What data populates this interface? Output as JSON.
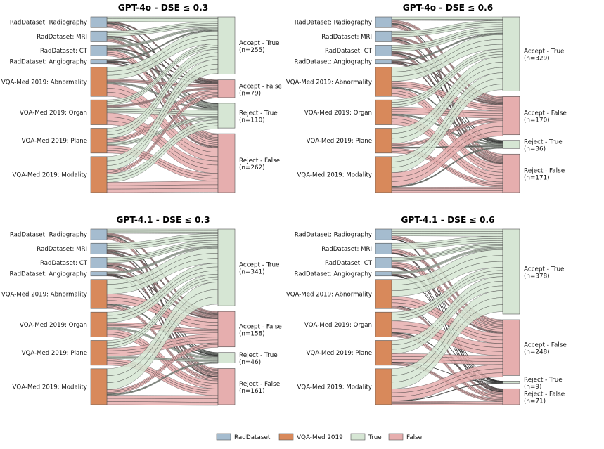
{
  "colors": {
    "radDataset": "#a5bccf",
    "vqaMed": "#d8895b",
    "trueFill": "#d6e6d4",
    "falseFill": "#e6aeae",
    "stroke": "#555555"
  },
  "legend": [
    {
      "label": "RadDataset",
      "color_key": "radDataset"
    },
    {
      "label": "VQA-Med 2019",
      "color_key": "vqaMed"
    },
    {
      "label": "True",
      "color_key": "trueFill"
    },
    {
      "label": "False",
      "color_key": "falseFill"
    }
  ],
  "chart_data": [
    {
      "type": "sankey",
      "title": "GPT-4o - DSE ≤ 0.3",
      "sources": [
        {
          "label": "RadDataset: Radiography",
          "group": "radDataset",
          "n": 50
        },
        {
          "label": "RadDataset: MRI",
          "group": "radDataset",
          "n": 50
        },
        {
          "label": "RadDataset: CT",
          "group": "radDataset",
          "n": 50
        },
        {
          "label": "RadDataset: Angiography",
          "group": "radDataset",
          "n": 20
        },
        {
          "label": "VQA-Med 2019: Abnormality",
          "group": "vqaMed",
          "n": 136
        },
        {
          "label": "VQA-Med 2019: Organ",
          "group": "vqaMed",
          "n": 116
        },
        {
          "label": "VQA-Med 2019: Plane",
          "group": "vqaMed",
          "n": 116
        },
        {
          "label": "VQA-Med 2019: Modality",
          "group": "vqaMed",
          "n": 168
        }
      ],
      "targets": [
        {
          "name": "Accept - True",
          "count_text": "(n=255)",
          "n": 255,
          "kind": "true"
        },
        {
          "name": "Accept - False",
          "count_text": "(n=79)",
          "n": 79,
          "kind": "false"
        },
        {
          "name": "Reject - True",
          "count_text": "(n=110)",
          "n": 110,
          "kind": "true"
        },
        {
          "name": "Reject - False",
          "count_text": "(n=262)",
          "n": 262,
          "kind": "false"
        }
      ]
    },
    {
      "type": "sankey",
      "title": "GPT-4o - DSE ≤ 0.6",
      "sources": [
        {
          "label": "RadDataset: Radiography",
          "group": "radDataset",
          "n": 50
        },
        {
          "label": "RadDataset: MRI",
          "group": "radDataset",
          "n": 50
        },
        {
          "label": "RadDataset: CT",
          "group": "radDataset",
          "n": 50
        },
        {
          "label": "RadDataset: Angiography",
          "group": "radDataset",
          "n": 20
        },
        {
          "label": "VQA-Med 2019: Abnormality",
          "group": "vqaMed",
          "n": 136
        },
        {
          "label": "VQA-Med 2019: Organ",
          "group": "vqaMed",
          "n": 116
        },
        {
          "label": "VQA-Med 2019: Plane",
          "group": "vqaMed",
          "n": 116
        },
        {
          "label": "VQA-Med 2019: Modality",
          "group": "vqaMed",
          "n": 168
        }
      ],
      "targets": [
        {
          "name": "Accept - True",
          "count_text": "(n=329)",
          "n": 329,
          "kind": "true"
        },
        {
          "name": "Accept - False",
          "count_text": "(n=170)",
          "n": 170,
          "kind": "false"
        },
        {
          "name": "Reject - True",
          "count_text": "(n=36)",
          "n": 36,
          "kind": "true"
        },
        {
          "name": "Reject - False",
          "count_text": "(n=171)",
          "n": 171,
          "kind": "false"
        }
      ]
    },
    {
      "type": "sankey",
      "title": "GPT-4.1 - DSE ≤ 0.3",
      "sources": [
        {
          "label": "RadDataset: Radiography",
          "group": "radDataset",
          "n": 50
        },
        {
          "label": "RadDataset: MRI",
          "group": "radDataset",
          "n": 50
        },
        {
          "label": "RadDataset: CT",
          "group": "radDataset",
          "n": 50
        },
        {
          "label": "RadDataset: Angiography",
          "group": "radDataset",
          "n": 20
        },
        {
          "label": "VQA-Med 2019: Abnormality",
          "group": "vqaMed",
          "n": 136
        },
        {
          "label": "VQA-Med 2019: Organ",
          "group": "vqaMed",
          "n": 116
        },
        {
          "label": "VQA-Med 2019: Plane",
          "group": "vqaMed",
          "n": 116
        },
        {
          "label": "VQA-Med 2019: Modality",
          "group": "vqaMed",
          "n": 168
        }
      ],
      "targets": [
        {
          "name": "Accept - True",
          "count_text": "(n=341)",
          "n": 341,
          "kind": "true"
        },
        {
          "name": "Accept - False",
          "count_text": "(n=158)",
          "n": 158,
          "kind": "false"
        },
        {
          "name": "Reject - True",
          "count_text": "(n=46)",
          "n": 46,
          "kind": "true"
        },
        {
          "name": "Reject - False",
          "count_text": "(n=161)",
          "n": 161,
          "kind": "false"
        }
      ]
    },
    {
      "type": "sankey",
      "title": "GPT-4.1 - DSE ≤ 0.6",
      "sources": [
        {
          "label": "RadDataset: Radiography",
          "group": "radDataset",
          "n": 50
        },
        {
          "label": "RadDataset: MRI",
          "group": "radDataset",
          "n": 50
        },
        {
          "label": "RadDataset: CT",
          "group": "radDataset",
          "n": 50
        },
        {
          "label": "RadDataset: Angiography",
          "group": "radDataset",
          "n": 20
        },
        {
          "label": "VQA-Med 2019: Abnormality",
          "group": "vqaMed",
          "n": 136
        },
        {
          "label": "VQA-Med 2019: Organ",
          "group": "vqaMed",
          "n": 116
        },
        {
          "label": "VQA-Med 2019: Plane",
          "group": "vqaMed",
          "n": 116
        },
        {
          "label": "VQA-Med 2019: Modality",
          "group": "vqaMed",
          "n": 168
        }
      ],
      "targets": [
        {
          "name": "Accept - True",
          "count_text": "(n=378)",
          "n": 378,
          "kind": "true"
        },
        {
          "name": "Accept - False",
          "count_text": "(n=248)",
          "n": 248,
          "kind": "false"
        },
        {
          "name": "Reject - True",
          "count_text": "(n=9)",
          "n": 9,
          "kind": "true"
        },
        {
          "name": "Reject - False",
          "count_text": "(n=71)",
          "n": 71,
          "kind": "false"
        }
      ]
    }
  ]
}
